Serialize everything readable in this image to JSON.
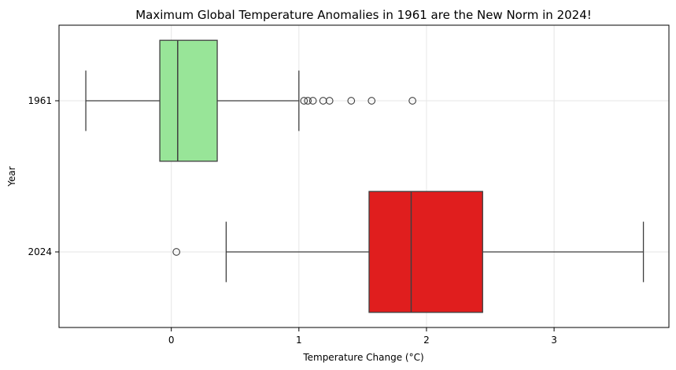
{
  "chart_data": {
    "type": "boxplot",
    "orientation": "horizontal",
    "title": "Maximum Global Temperature Anomalies in 1961 are the New Norm in 2024!",
    "xlabel": "Temperature Change (°C)",
    "ylabel": "Year",
    "xlim": [
      -0.88,
      3.9
    ],
    "xticks": [
      0,
      1,
      2,
      3
    ],
    "grid": true,
    "categories": [
      "1961",
      "2024"
    ],
    "boxes": [
      {
        "category": "1961",
        "color": "#98e598",
        "whisker_low": -0.67,
        "q1": -0.09,
        "median": 0.05,
        "q3": 0.36,
        "whisker_high": 1.0,
        "outliers": [
          1.04,
          1.07,
          1.11,
          1.19,
          1.24,
          1.41,
          1.57,
          1.89
        ]
      },
      {
        "category": "2024",
        "color": "#e01e1e",
        "whisker_low": 0.43,
        "q1": 1.55,
        "median": 1.88,
        "q3": 2.44,
        "whisker_high": 3.7,
        "outliers": [
          0.04
        ]
      }
    ]
  }
}
